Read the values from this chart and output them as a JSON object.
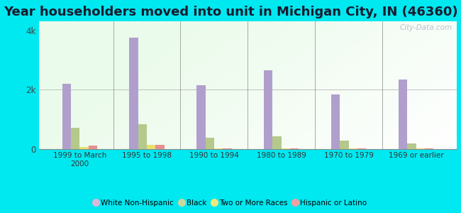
{
  "title": "Year householders moved into unit in Michigan City, IN (46360)",
  "categories": [
    "1999 to March\n2000",
    "1995 to 1998",
    "1990 to 1994",
    "1980 to 1989",
    "1970 to 1979",
    "1969 or earlier"
  ],
  "series": {
    "White Non-Hispanic": [
      2200,
      3750,
      2150,
      2650,
      1850,
      2350
    ],
    "Black": [
      720,
      830,
      380,
      440,
      280,
      190
    ],
    "Two or More Races": [
      70,
      150,
      25,
      25,
      15,
      15
    ],
    "Hispanic or Latino": [
      120,
      155,
      18,
      25,
      15,
      20
    ]
  },
  "bar_colors": {
    "White Non-Hispanic": "#b09fcc",
    "Black": "#b5c98a",
    "Two or More Races": "#e8e070",
    "Hispanic or Latino": "#e89090"
  },
  "legend_colors": {
    "White Non-Hispanic": "#dbb8d8",
    "Black": "#c8d8a0",
    "Two or More Races": "#f0e878",
    "Hispanic or Latino": "#f0a0a0"
  },
  "ylim": [
    0,
    4300
  ],
  "yticks": [
    0,
    2000,
    4000
  ],
  "ytick_labels": [
    "0",
    "2k",
    "4k"
  ],
  "background_outer": "#00e8f0",
  "bar_width": 0.13,
  "title_fontsize": 13,
  "title_color": "#1a1a2e",
  "watermark": "City-Data.com"
}
